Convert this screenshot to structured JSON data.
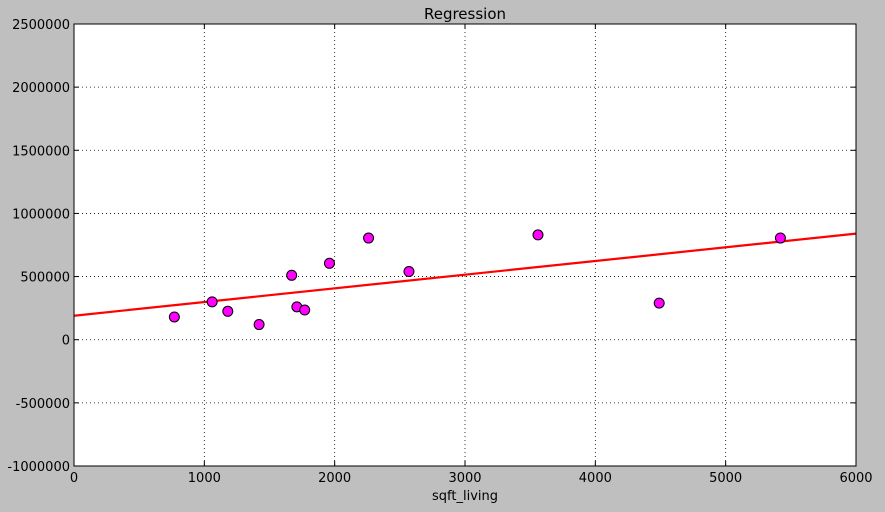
{
  "chart_data": {
    "type": "scatter",
    "title": "Regression",
    "xlabel": "sqft_living",
    "ylabel": "",
    "xlim": [
      0,
      6000
    ],
    "ylim": [
      -1000000,
      2500000
    ],
    "x_ticks": [
      0,
      1000,
      2000,
      3000,
      4000,
      5000,
      6000
    ],
    "y_ticks": [
      -1000000,
      -500000,
      0,
      500000,
      1000000,
      1500000,
      2000000,
      2500000
    ],
    "grid": true,
    "grid_style": "dotted",
    "legend": "none",
    "series": [
      {
        "type": "scatter",
        "color": "#ff00ff",
        "points": [
          [
            770,
            180000
          ],
          [
            1060,
            300000
          ],
          [
            1180,
            225000
          ],
          [
            1420,
            120000
          ],
          [
            1670,
            510000
          ],
          [
            1710,
            260000
          ],
          [
            1770,
            235000
          ],
          [
            1960,
            605000
          ],
          [
            2260,
            805000
          ],
          [
            2570,
            540000
          ],
          [
            3560,
            830000
          ],
          [
            4490,
            290000
          ],
          [
            5420,
            805000
          ]
        ]
      },
      {
        "type": "line",
        "color": "#ff0000",
        "points": [
          [
            0,
            190000
          ],
          [
            6000,
            840000
          ]
        ]
      }
    ]
  }
}
